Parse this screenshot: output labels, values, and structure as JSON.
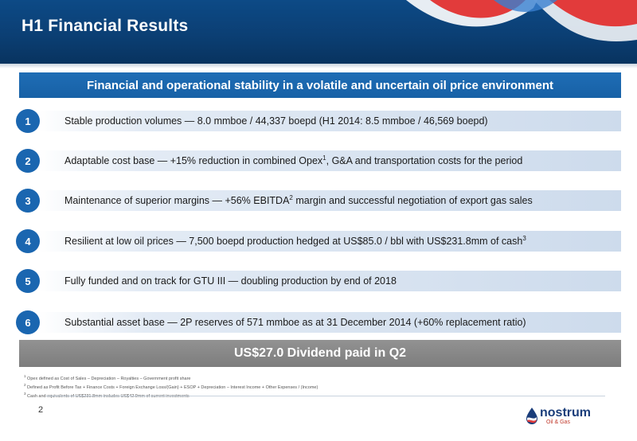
{
  "header": {
    "title": "H1 Financial Results"
  },
  "banner": {
    "text": "Financial and operational stability in a volatile and uncertain oil price environment"
  },
  "items": [
    {
      "num": "1",
      "text": "Stable production volumes — 8.0 mmboe / 44,337 boepd (H1 2014: 8.5 mmboe / 46,569 boepd)",
      "sup": "",
      "after": ""
    },
    {
      "num": "2",
      "text": "Adaptable cost base — +15% reduction in combined Opex",
      "sup": "1",
      "after": ", G&A and transportation costs for the period"
    },
    {
      "num": "3",
      "text": "Maintenance of superior margins — +56% EBITDA",
      "sup": "2",
      "after": " margin and successful negotiation of export gas sales"
    },
    {
      "num": "4",
      "text": "Resilient at low oil prices — 7,500 boepd production hedged at US$85.0 / bbl with US$231.8mm of cash",
      "sup": "3",
      "after": ""
    },
    {
      "num": "5",
      "text": "Fully funded and on track for GTU III — doubling production by end of 2018",
      "sup": "",
      "after": ""
    },
    {
      "num": "6",
      "text": "Substantial asset base — 2P reserves of 571 mmboe as at 31 December 2014 (+60% replacement ratio)",
      "sup": "",
      "after": ""
    }
  ],
  "dividend": {
    "text": "US$27.0 Dividend paid in Q2"
  },
  "footnotes": [
    {
      "mark": "1",
      "text": "Opex defined as Cost of Sales – Depreciation – Royalties – Government profit share"
    },
    {
      "mark": "2",
      "text": "Defined as Profit Before Tax + Finance Costs + Foreign Exchange Loss/(Gain) + ESOP + Depreciation – Interest Income + Other Expenses / (Income)"
    },
    {
      "mark": "3",
      "text": "Cash and equivalents of US$231.8mm includes US$42.9mm of current investments"
    }
  ],
  "page_number": "2",
  "logo": {
    "name": "nostrum",
    "sub": "Oil & Gas"
  },
  "colors": {
    "header": "#0b3f74",
    "accent": "#1a66b0",
    "dividend": "#878787",
    "logo_red": "#c0392b"
  }
}
